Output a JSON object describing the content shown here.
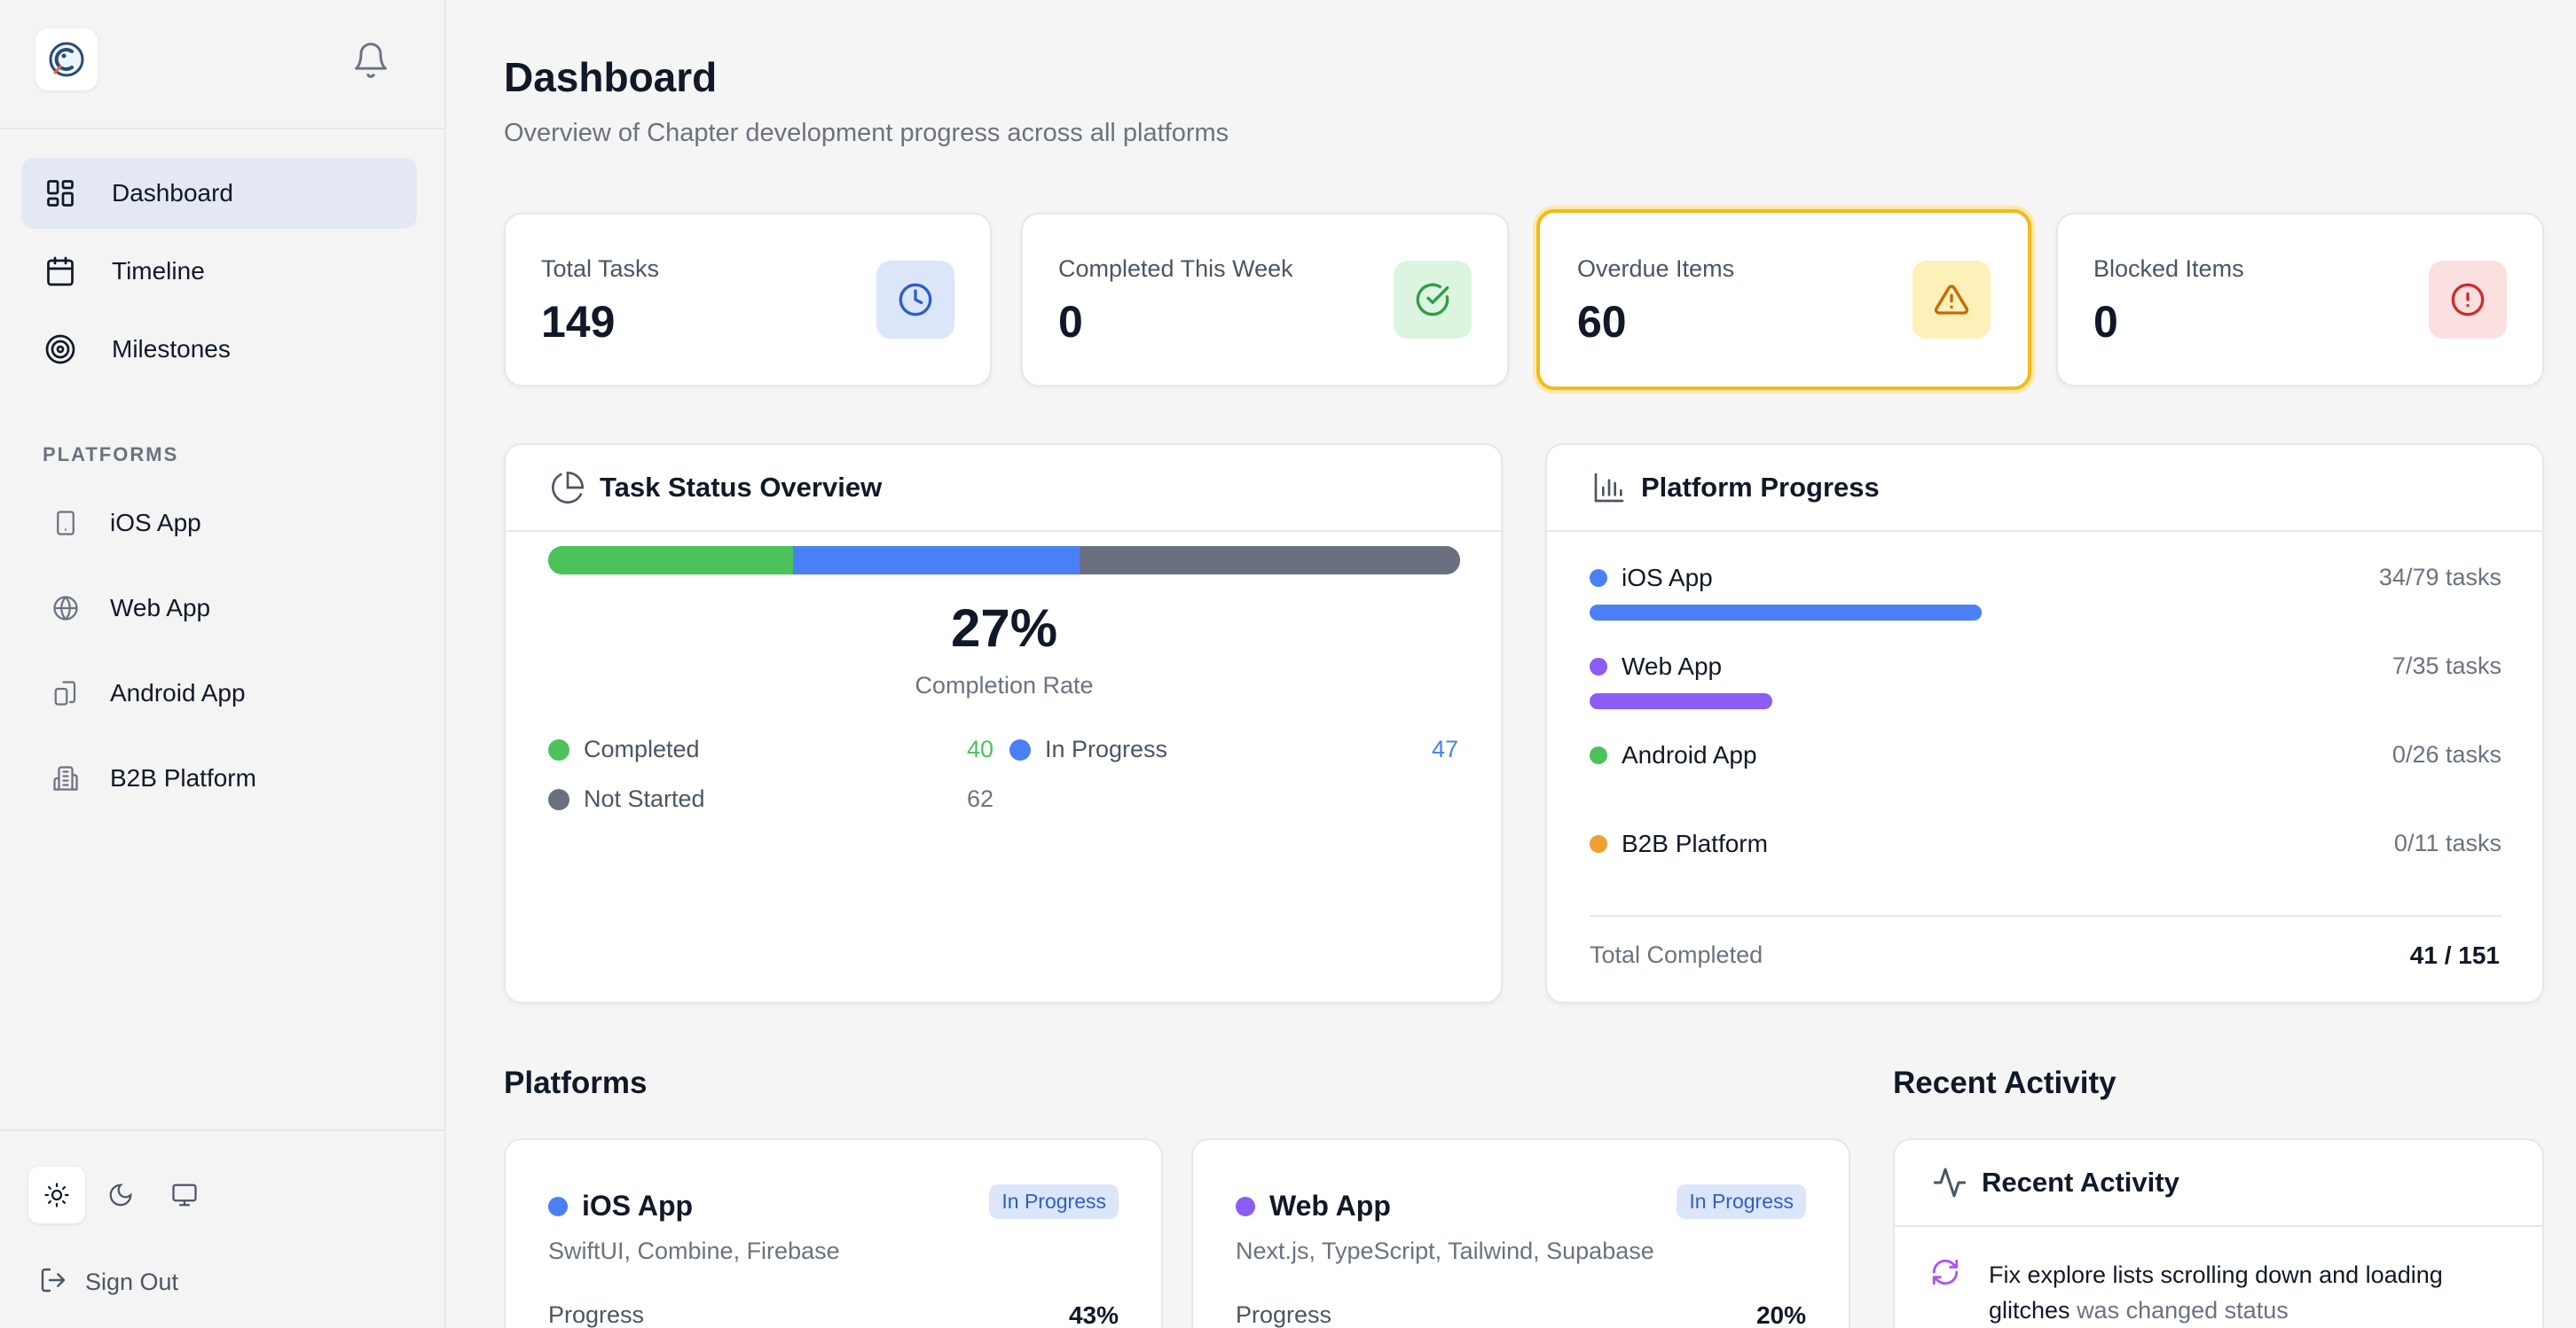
{
  "sidebar": {
    "nav": [
      {
        "label": "Dashboard"
      },
      {
        "label": "Timeline"
      },
      {
        "label": "Milestones"
      }
    ],
    "platforms_label": "PLATFORMS",
    "platforms": [
      {
        "label": "iOS App"
      },
      {
        "label": "Web App"
      },
      {
        "label": "Android App"
      },
      {
        "label": "B2B Platform"
      }
    ],
    "sign_out": "Sign Out"
  },
  "header": {
    "title": "Dashboard",
    "subtitle": "Overview of Chapter development progress across all platforms"
  },
  "stats": [
    {
      "label": "Total Tasks",
      "value": "149",
      "icon": "clock-icon",
      "color": "#2f5ec4"
    },
    {
      "label": "Completed This Week",
      "value": "0",
      "icon": "check-circle-icon",
      "color": "#2f9e44"
    },
    {
      "label": "Overdue Items",
      "value": "60",
      "icon": "warning-triangle-icon",
      "color": "#c76a06"
    },
    {
      "label": "Blocked Items",
      "value": "0",
      "icon": "alert-circle-icon",
      "color": "#d12b2b"
    }
  ],
  "task_status": {
    "title": "Task Status Overview",
    "completion": "27%",
    "completion_label": "Completion Rate",
    "segments": [
      {
        "label": "Completed",
        "value": "40",
        "color": "#4cc25b",
        "fraction": 0.268
      },
      {
        "label": "In Progress",
        "value": "47",
        "color": "#4a80f5",
        "fraction": 0.315
      },
      {
        "label": "Not Started",
        "value": "62",
        "color": "#6b7080",
        "fraction": 0.417
      }
    ]
  },
  "platform_progress": {
    "title": "Platform Progress",
    "rows": [
      {
        "name": "iOS App",
        "count": "34/79 tasks",
        "color": "#4a80f5",
        "fraction": 0.43
      },
      {
        "name": "Web App",
        "count": "7/35 tasks",
        "color": "#8b5cf6",
        "fraction": 0.2
      },
      {
        "name": "Android App",
        "count": "0/26 tasks",
        "color": "#4cc25b",
        "fraction": 0
      },
      {
        "name": "B2B Platform",
        "count": "0/11 tasks",
        "color": "#f0a030",
        "fraction": 0
      }
    ],
    "total_label": "Total Completed",
    "total_value": "41 / 151"
  },
  "platforms_section": {
    "title": "Platforms",
    "cards": [
      {
        "name": "iOS App",
        "status": "In Progress",
        "tech": "SwiftUI, Combine, Firebase",
        "progress_label": "Progress",
        "progress": "43%",
        "color": "#4a80f5"
      },
      {
        "name": "Web App",
        "status": "In Progress",
        "tech": "Next.js, TypeScript, Tailwind, Supabase",
        "progress_label": "Progress",
        "progress": "20%",
        "color": "#8b5cf6"
      }
    ]
  },
  "recent_activity": {
    "section_title": "Recent Activity",
    "card_title": "Recent Activity",
    "items": [
      {
        "title": "Fix explore lists scrolling down and loading glitches",
        "suffix": "was changed status"
      }
    ]
  }
}
